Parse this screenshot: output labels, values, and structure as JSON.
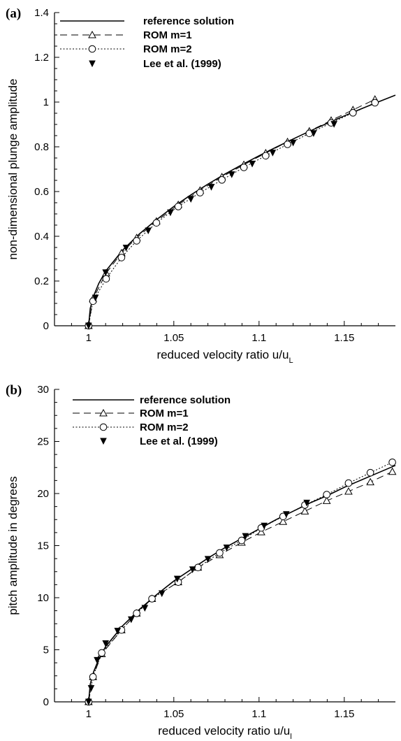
{
  "chart_data": [
    {
      "type": "line",
      "panel_label": "(a)",
      "xlabel": "reduced velocity ratio u/u",
      "xlabel_sub": "L",
      "ylabel": "non-dimensional plunge amplitude",
      "xlim": [
        0.98,
        1.18
      ],
      "ylim": [
        0,
        1.4
      ],
      "xticks": [
        1,
        1.05,
        1.1,
        1.15
      ],
      "xtick_labels": [
        "1",
        "1.05",
        "1.1",
        "1.15"
      ],
      "yticks": [
        0,
        0.2,
        0.4,
        0.6,
        0.8,
        1,
        1.2,
        1.4
      ],
      "ytick_labels": [
        "0",
        "0.2",
        "0.4",
        "0.6",
        "0.8",
        "1",
        "1.2",
        "1.4"
      ],
      "grid": false,
      "legend_position": "top-left",
      "series": [
        {
          "name": "reference solution",
          "style": "solid",
          "x": [
            1.0,
            1.001,
            1.003,
            1.006,
            1.01,
            1.02,
            1.03,
            1.04,
            1.05,
            1.06,
            1.07,
            1.08,
            1.09,
            1.1,
            1.11,
            1.12,
            1.13,
            1.14,
            1.15,
            1.16,
            1.17,
            1.18
          ],
          "y": [
            0.0,
            0.078,
            0.134,
            0.189,
            0.244,
            0.338,
            0.412,
            0.475,
            0.533,
            0.585,
            0.633,
            0.678,
            0.72,
            0.76,
            0.798,
            0.835,
            0.871,
            0.905,
            0.938,
            0.97,
            1.001,
            1.031
          ]
        },
        {
          "name": "ROM m=1",
          "style": "dashed",
          "marker": "triangle",
          "x": [
            1.0,
            1.0026,
            1.0103,
            1.0193,
            1.0282,
            1.0398,
            1.0526,
            1.0654,
            1.0782,
            1.0911,
            1.1039,
            1.1167,
            1.1295,
            1.1423,
            1.1551,
            1.168
          ],
          "y": [
            0.0,
            0.12,
            0.235,
            0.325,
            0.393,
            0.467,
            0.541,
            0.605,
            0.665,
            0.72,
            0.772,
            0.822,
            0.87,
            0.918,
            0.965,
            1.012
          ]
        },
        {
          "name": "ROM m=2",
          "style": "dotted",
          "marker": "circle",
          "x": [
            1.0,
            1.0026,
            1.0103,
            1.0193,
            1.0282,
            1.0398,
            1.0526,
            1.0654,
            1.0782,
            1.0911,
            1.1039,
            1.1167,
            1.1295,
            1.1423,
            1.1551,
            1.168
          ],
          "y": [
            0.0,
            0.11,
            0.21,
            0.305,
            0.38,
            0.46,
            0.533,
            0.595,
            0.652,
            0.708,
            0.76,
            0.811,
            0.86,
            0.907,
            0.952,
            0.997
          ]
        },
        {
          "name": "Lee et al. (1999)",
          "style": "none",
          "marker": "filled-triangle-down",
          "x": [
            1.0,
            1.004,
            1.01,
            1.022,
            1.035,
            1.048,
            1.06,
            1.072,
            1.084,
            1.096,
            1.108,
            1.12,
            1.132,
            1.144
          ],
          "y": [
            0.0,
            0.125,
            0.238,
            0.348,
            0.425,
            0.506,
            0.566,
            0.62,
            0.676,
            0.724,
            0.773,
            0.818,
            0.86,
            0.901
          ]
        }
      ]
    },
    {
      "type": "line",
      "panel_label": "(b)",
      "xlabel": "reduced velocity ratio u/u",
      "xlabel_sub": "l",
      "ylabel": "pitch amplitude in degrees",
      "xlim": [
        0.98,
        1.18
      ],
      "ylim": [
        0,
        30
      ],
      "xticks": [
        1,
        1.05,
        1.1,
        1.15
      ],
      "xtick_labels": [
        "1",
        "1.05",
        "1.1",
        "1.15"
      ],
      "yticks": [
        0,
        5,
        10,
        15,
        20,
        25,
        30
      ],
      "ytick_labels": [
        "0",
        "5",
        "10",
        "15",
        "20",
        "25",
        "30"
      ],
      "grid": false,
      "legend_position": "top-left",
      "series": [
        {
          "name": "reference solution",
          "style": "solid",
          "x": [
            1.0,
            1.001,
            1.003,
            1.006,
            1.01,
            1.02,
            1.03,
            1.04,
            1.05,
            1.06,
            1.07,
            1.08,
            1.09,
            1.1,
            1.11,
            1.12,
            1.13,
            1.14,
            1.15,
            1.16,
            1.17,
            1.18
          ],
          "y": [
            0.0,
            1.7,
            2.9,
            4.1,
            5.3,
            7.3,
            8.9,
            10.3,
            11.6,
            12.7,
            13.8,
            14.8,
            15.7,
            16.6,
            17.5,
            18.3,
            19.1,
            19.8,
            20.6,
            21.3,
            22.0,
            22.7
          ]
        },
        {
          "name": "ROM m=1",
          "style": "dashed",
          "marker": "triangle",
          "x": [
            1.0,
            1.0026,
            1.0077,
            1.0193,
            1.0282,
            1.0372,
            1.0526,
            1.0642,
            1.0769,
            1.0898,
            1.1013,
            1.1141,
            1.1269,
            1.1397,
            1.1525,
            1.1653,
            1.1782
          ],
          "y": [
            0.0,
            2.4,
            4.6,
            6.9,
            8.5,
            9.9,
            11.5,
            12.9,
            14.1,
            15.3,
            16.3,
            17.3,
            18.3,
            19.3,
            20.2,
            21.1,
            22.1
          ]
        },
        {
          "name": "ROM m=2",
          "style": "dotted",
          "marker": "circle",
          "x": [
            1.0,
            1.0026,
            1.0077,
            1.0193,
            1.0282,
            1.0372,
            1.0526,
            1.0642,
            1.0769,
            1.0898,
            1.1013,
            1.1141,
            1.1269,
            1.1397,
            1.1525,
            1.1653,
            1.1782
          ],
          "y": [
            0.0,
            2.4,
            4.7,
            6.9,
            8.5,
            9.9,
            11.5,
            12.9,
            14.3,
            15.5,
            16.7,
            17.8,
            18.9,
            19.9,
            21.0,
            22.0,
            23.0
          ]
        },
        {
          "name": "Lee et al. (1999)",
          "style": "none",
          "marker": "filled-triangle-down",
          "x": [
            1.0,
            1.0015,
            1.005,
            1.01,
            1.017,
            1.025,
            1.033,
            1.043,
            1.052,
            1.061,
            1.07,
            1.081,
            1.092,
            1.103,
            1.116,
            1.128
          ],
          "y": [
            0.0,
            1.3,
            4.0,
            5.6,
            6.8,
            7.9,
            9.0,
            10.4,
            11.8,
            12.7,
            13.7,
            14.8,
            15.9,
            16.9,
            18.0,
            19.1
          ]
        }
      ]
    }
  ]
}
